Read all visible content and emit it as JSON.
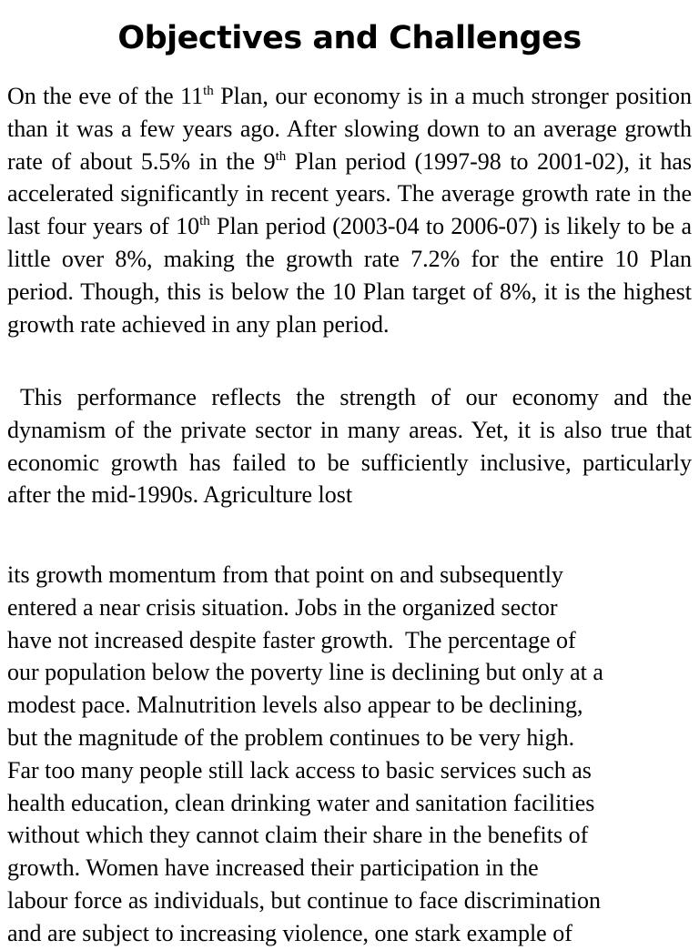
{
  "header": {
    "title": "Objectives and Challenges"
  },
  "paragraphs": [
    {
      "runs": [
        {
          "text": "On the eve of the 11"
        },
        {
          "sup": "th"
        },
        {
          "text": " Plan, our economy is in a much stronger position than it was a few years ago. After slowing down to an average growth rate of about 5.5% in the 9"
        },
        {
          "sup": "th"
        },
        {
          "text": " Plan period (1997-98 to 2001-02), it has accelerated significantly in recent years. The average growth rate in the last four years of 10"
        },
        {
          "sup": "th"
        },
        {
          "text": " Plan period (2003-04 to 2006-07) is likely to be a little over 8%, making the growth rate 7.2% for the entire 10 Plan period. Though, this is below the 10 Plan target of 8%, it is the highest growth rate achieved in any plan period."
        }
      ]
    },
    {
      "runs": [
        {
          "text": "This performance reflects the strength of our economy and the dynamism of the private sector in many areas. Yet, it is also true that economic growth has failed to be sufficiently inclusive, particularly after the mid-1990s. Agriculture lost"
        }
      ]
    }
  ],
  "continuation": {
    "lines": [
      "its growth momentum from that point on and subsequently",
      "entered a near crisis situation. Jobs in the organized sector",
      "have not increased despite faster growth.  The percentage of",
      "our population below the poverty line is declining but only at a",
      "modest pace. Malnutrition levels also appear to be declining,",
      "but the magnitude of the problem continues to be very high.",
      "Far too many people still lack access to basic services such as",
      "health education, clean drinking water and sanitation facilities",
      "without which they cannot claim their share in the benefits of",
      "growth. Women have increased their participation in the",
      "labour force as individuals, but continue to face discrimination",
      "and are subject to increasing violence, one stark example of"
    ]
  }
}
